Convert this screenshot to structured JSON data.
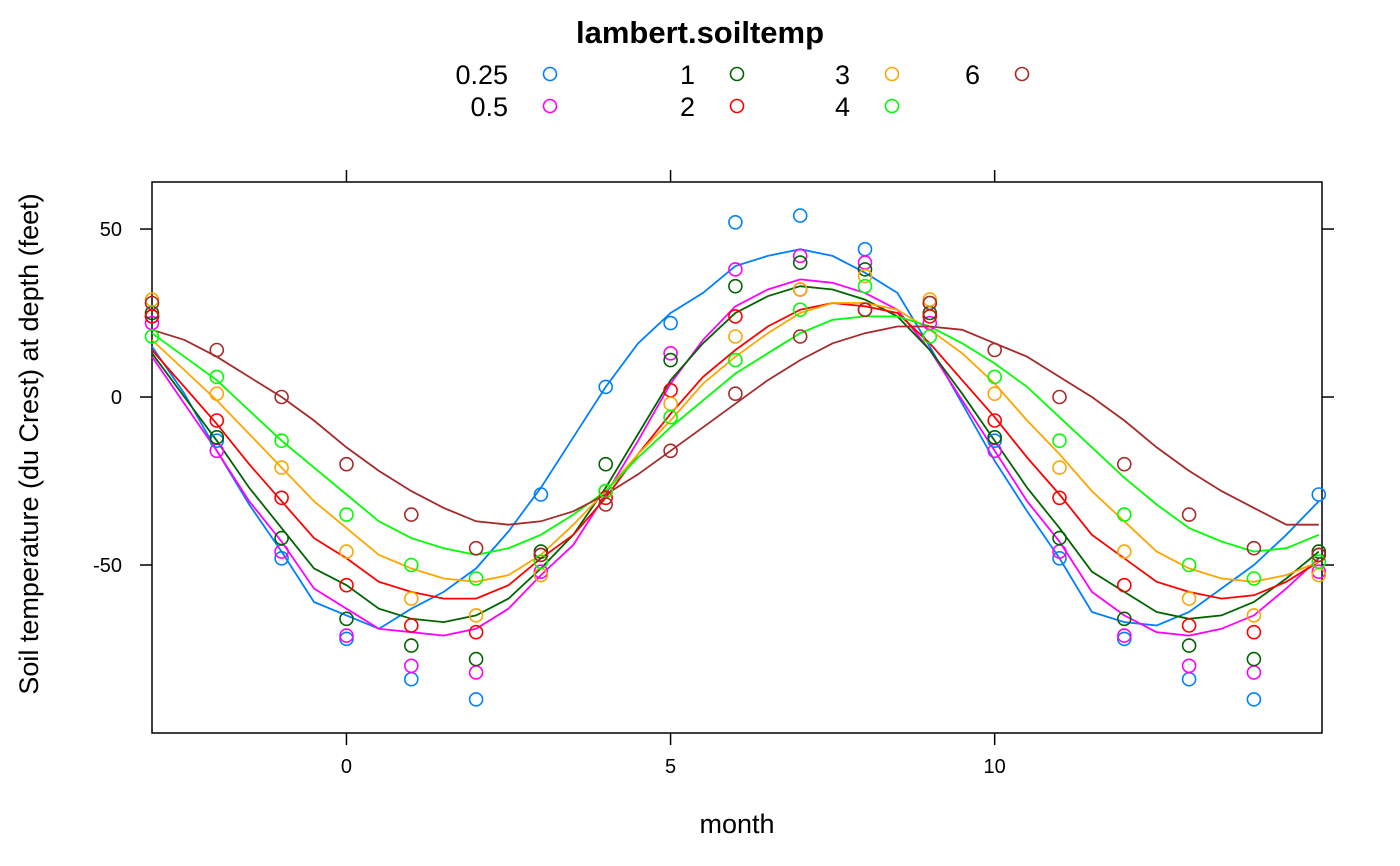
{
  "chart_data": {
    "type": "scatter",
    "title": "lambert.soiltemp",
    "xlabel": "month",
    "ylabel": "Soil temperature (du Crest) at depth (feet)",
    "xlim": [
      -3,
      15.05
    ],
    "ylim": [
      -100,
      64
    ],
    "xticks": [
      0,
      5,
      10
    ],
    "yticks": [
      -50,
      0,
      50
    ],
    "x": [
      -3,
      -2,
      -1,
      0,
      1,
      2,
      3,
      4,
      5,
      6,
      7,
      8,
      9,
      10,
      11,
      12,
      13,
      14,
      15
    ],
    "legend_position": "top",
    "grid": false,
    "series": [
      {
        "name": "0.25",
        "color": "#0080ff",
        "points": [
          24,
          -13,
          -48,
          -72,
          -84,
          -90,
          -29,
          3,
          22,
          52,
          54,
          44,
          28,
          -13,
          -48,
          -72,
          -84,
          -90,
          -29
        ],
        "curve": [
          [
            -3,
            15
          ],
          [
            -2.5,
            1
          ],
          [
            -2,
            -16
          ],
          [
            -1.5,
            -32
          ],
          [
            -1,
            -46
          ],
          [
            -0.5,
            -61
          ],
          [
            0,
            -65
          ],
          [
            0.5,
            -69
          ],
          [
            1,
            -63
          ],
          [
            1.5,
            -58
          ],
          [
            2,
            -51
          ],
          [
            2.5,
            -40
          ],
          [
            3,
            -27
          ],
          [
            3.5,
            -12
          ],
          [
            4,
            3
          ],
          [
            4.5,
            16
          ],
          [
            5,
            25
          ],
          [
            5.5,
            31
          ],
          [
            6,
            39
          ],
          [
            6.5,
            42
          ],
          [
            7,
            44
          ],
          [
            7.5,
            42
          ],
          [
            8,
            37
          ],
          [
            8.5,
            31
          ],
          [
            9,
            15
          ],
          [
            9.5,
            -2
          ],
          [
            10,
            -19
          ],
          [
            10.5,
            -34
          ],
          [
            11,
            -48
          ],
          [
            11.5,
            -64
          ],
          [
            12,
            -67
          ],
          [
            12.5,
            -68
          ],
          [
            13,
            -64
          ],
          [
            13.5,
            -57
          ],
          [
            14,
            -50
          ],
          [
            14.5,
            -41
          ],
          [
            15,
            -31
          ]
        ]
      },
      {
        "name": "0.5",
        "color": "#ff00ff",
        "points": [
          22,
          -16,
          -46,
          -71,
          -80,
          -82,
          -52,
          -28,
          13,
          38,
          42,
          40,
          22,
          -16,
          -46,
          -71,
          -80,
          -82,
          -52
        ],
        "curve": [
          [
            -3,
            12
          ],
          [
            -2.5,
            -2
          ],
          [
            -2,
            -16
          ],
          [
            -1.5,
            -31
          ],
          [
            -1,
            -43
          ],
          [
            -0.5,
            -57
          ],
          [
            0,
            -63
          ],
          [
            0.5,
            -69
          ],
          [
            1,
            -70
          ],
          [
            1.5,
            -71
          ],
          [
            2,
            -69
          ],
          [
            2.5,
            -63
          ],
          [
            3,
            -53
          ],
          [
            3.5,
            -44
          ],
          [
            4,
            -29
          ],
          [
            4.5,
            -13
          ],
          [
            5,
            4
          ],
          [
            5.5,
            17
          ],
          [
            6,
            27
          ],
          [
            6.5,
            32
          ],
          [
            7,
            35
          ],
          [
            7.5,
            34
          ],
          [
            8,
            31
          ],
          [
            8.5,
            26
          ],
          [
            9,
            14
          ],
          [
            9.5,
            -1
          ],
          [
            10,
            -16
          ],
          [
            10.5,
            -31
          ],
          [
            11,
            -43
          ],
          [
            11.5,
            -58
          ],
          [
            12,
            -65
          ],
          [
            12.5,
            -70
          ],
          [
            13,
            -71
          ],
          [
            13.5,
            -69
          ],
          [
            14,
            -65
          ],
          [
            14.5,
            -57
          ],
          [
            15,
            -48
          ]
        ]
      },
      {
        "name": "1",
        "color": "#006400",
        "points": [
          25,
          -12,
          -42,
          -66,
          -74,
          -78,
          -46,
          -20,
          11,
          33,
          40,
          38,
          25,
          -12,
          -42,
          -66,
          -74,
          -78,
          -46
        ],
        "curve": [
          [
            -3,
            13
          ],
          [
            -2.5,
            0
          ],
          [
            -2,
            -13
          ],
          [
            -1.5,
            -27
          ],
          [
            -1,
            -39
          ],
          [
            -0.5,
            -51
          ],
          [
            0,
            -56
          ],
          [
            0.5,
            -63
          ],
          [
            1,
            -66
          ],
          [
            1.5,
            -67
          ],
          [
            2,
            -65
          ],
          [
            2.5,
            -60
          ],
          [
            3,
            -51
          ],
          [
            3.5,
            -41
          ],
          [
            4,
            -27
          ],
          [
            4.5,
            -11
          ],
          [
            5,
            5
          ],
          [
            5.5,
            16
          ],
          [
            6,
            25
          ],
          [
            6.5,
            30
          ],
          [
            7,
            33
          ],
          [
            7.5,
            32
          ],
          [
            8,
            29
          ],
          [
            8.5,
            24
          ],
          [
            9,
            14
          ],
          [
            9.5,
            1
          ],
          [
            10,
            -13
          ],
          [
            10.5,
            -27
          ],
          [
            11,
            -39
          ],
          [
            11.5,
            -52
          ],
          [
            12,
            -58
          ],
          [
            12.5,
            -64
          ],
          [
            13,
            -66
          ],
          [
            13.5,
            -65
          ],
          [
            14,
            -61
          ],
          [
            14.5,
            -54
          ],
          [
            15,
            -46
          ]
        ]
      },
      {
        "name": "2",
        "color": "#ff0000",
        "points": [
          24,
          -7,
          -30,
          -56,
          -68,
          -70,
          -47,
          -30,
          2,
          24,
          32,
          26,
          24,
          -7,
          -30,
          -56,
          -68,
          -70,
          -47
        ],
        "curve": [
          [
            -3,
            14
          ],
          [
            -2.5,
            3
          ],
          [
            -2,
            -8
          ],
          [
            -1.5,
            -20
          ],
          [
            -1,
            -31
          ],
          [
            -0.5,
            -42
          ],
          [
            0,
            -48
          ],
          [
            0.5,
            -55
          ],
          [
            1,
            -58
          ],
          [
            1.5,
            -60
          ],
          [
            2,
            -60
          ],
          [
            2.5,
            -56
          ],
          [
            3,
            -48
          ],
          [
            3.5,
            -41
          ],
          [
            4,
            -30
          ],
          [
            4.5,
            -17
          ],
          [
            5,
            -5
          ],
          [
            5.5,
            6
          ],
          [
            6,
            14
          ],
          [
            6.5,
            21
          ],
          [
            7,
            26
          ],
          [
            7.5,
            28
          ],
          [
            8,
            27
          ],
          [
            8.5,
            25
          ],
          [
            9,
            16
          ],
          [
            9.5,
            5
          ],
          [
            10,
            -6
          ],
          [
            10.5,
            -18
          ],
          [
            11,
            -29
          ],
          [
            11.5,
            -41
          ],
          [
            12,
            -48
          ],
          [
            12.5,
            -55
          ],
          [
            13,
            -58
          ],
          [
            13.5,
            -60
          ],
          [
            14,
            -59
          ],
          [
            14.5,
            -55
          ],
          [
            15,
            -49
          ]
        ]
      },
      {
        "name": "3",
        "color": "#ffa500",
        "points": [
          29,
          1,
          -21,
          -46,
          -60,
          -65,
          -53,
          -28,
          -2,
          18,
          32,
          36,
          29,
          1,
          -21,
          -46,
          -60,
          -65,
          -53
        ],
        "curve": [
          [
            -3,
            17
          ],
          [
            -2.5,
            8
          ],
          [
            -2,
            -1
          ],
          [
            -1.5,
            -11
          ],
          [
            -1,
            -21
          ],
          [
            -0.5,
            -31
          ],
          [
            0,
            -39
          ],
          [
            0.5,
            -47
          ],
          [
            1,
            -51
          ],
          [
            1.5,
            -54
          ],
          [
            2,
            -55
          ],
          [
            2.5,
            -53
          ],
          [
            3,
            -47
          ],
          [
            3.5,
            -38
          ],
          [
            4,
            -28
          ],
          [
            4.5,
            -17
          ],
          [
            5,
            -7
          ],
          [
            5.5,
            4
          ],
          [
            6,
            12
          ],
          [
            6.5,
            19
          ],
          [
            7,
            25
          ],
          [
            7.5,
            28
          ],
          [
            8,
            28
          ],
          [
            8.5,
            26
          ],
          [
            9,
            20
          ],
          [
            9.5,
            13
          ],
          [
            10,
            4
          ],
          [
            10.5,
            -7
          ],
          [
            11,
            -17
          ],
          [
            11.5,
            -28
          ],
          [
            12,
            -37
          ],
          [
            12.5,
            -46
          ],
          [
            13,
            -51
          ],
          [
            13.5,
            -54
          ],
          [
            14,
            -55
          ],
          [
            14.5,
            -53
          ],
          [
            15,
            -49
          ]
        ]
      },
      {
        "name": "4",
        "color": "#00ff00",
        "points": [
          18,
          6,
          -13,
          -35,
          -50,
          -54,
          -49,
          -28,
          -6,
          11,
          26,
          33,
          18,
          6,
          -13,
          -35,
          -50,
          -54,
          -49
        ],
        "curve": [
          [
            -3,
            19
          ],
          [
            -2.5,
            12
          ],
          [
            -2,
            5
          ],
          [
            -1.5,
            -4
          ],
          [
            -1,
            -13
          ],
          [
            -0.5,
            -21
          ],
          [
            0,
            -29
          ],
          [
            0.5,
            -37
          ],
          [
            1,
            -42
          ],
          [
            1.5,
            -45
          ],
          [
            2,
            -47
          ],
          [
            2.5,
            -45
          ],
          [
            3,
            -41
          ],
          [
            3.5,
            -35
          ],
          [
            4,
            -28
          ],
          [
            4.5,
            -18
          ],
          [
            5,
            -9
          ],
          [
            5.5,
            -1
          ],
          [
            6,
            7
          ],
          [
            6.5,
            13
          ],
          [
            7,
            19
          ],
          [
            7.5,
            23
          ],
          [
            8,
            24
          ],
          [
            8.5,
            24
          ],
          [
            9,
            21
          ],
          [
            9.5,
            16
          ],
          [
            10,
            10
          ],
          [
            10.5,
            3
          ],
          [
            11,
            -6
          ],
          [
            11.5,
            -15
          ],
          [
            12,
            -24
          ],
          [
            12.5,
            -32
          ],
          [
            13,
            -39
          ],
          [
            13.5,
            -43
          ],
          [
            14,
            -46
          ],
          [
            14.5,
            -45
          ],
          [
            15,
            -41
          ]
        ]
      },
      {
        "name": "6",
        "color": "#a52a2a",
        "points": [
          28,
          14,
          0,
          -20,
          -35,
          -45,
          -47,
          -32,
          -16,
          1,
          18,
          26,
          28,
          14,
          0,
          -20,
          -35,
          -45,
          -47
        ],
        "curve": [
          [
            -3,
            20
          ],
          [
            -2.5,
            17
          ],
          [
            -2,
            12
          ],
          [
            -1.5,
            6
          ],
          [
            -1,
            0
          ],
          [
            -0.5,
            -7
          ],
          [
            0,
            -15
          ],
          [
            0.5,
            -22
          ],
          [
            1,
            -28
          ],
          [
            1.5,
            -33
          ],
          [
            2,
            -37
          ],
          [
            2.5,
            -38
          ],
          [
            3,
            -37
          ],
          [
            3.5,
            -34
          ],
          [
            4,
            -29
          ],
          [
            4.5,
            -23
          ],
          [
            5,
            -16
          ],
          [
            5.5,
            -9
          ],
          [
            6,
            -2
          ],
          [
            6.5,
            5
          ],
          [
            7,
            11
          ],
          [
            7.5,
            16
          ],
          [
            8,
            19
          ],
          [
            8.5,
            21
          ],
          [
            9,
            21
          ],
          [
            9.5,
            20
          ],
          [
            10,
            16
          ],
          [
            10.5,
            12
          ],
          [
            11,
            6
          ],
          [
            11.5,
            0
          ],
          [
            12,
            -7
          ],
          [
            12.5,
            -15
          ],
          [
            13,
            -22
          ],
          [
            13.5,
            -28
          ],
          [
            14,
            -33
          ],
          [
            14.5,
            -38
          ],
          [
            15,
            -38
          ]
        ]
      }
    ]
  }
}
